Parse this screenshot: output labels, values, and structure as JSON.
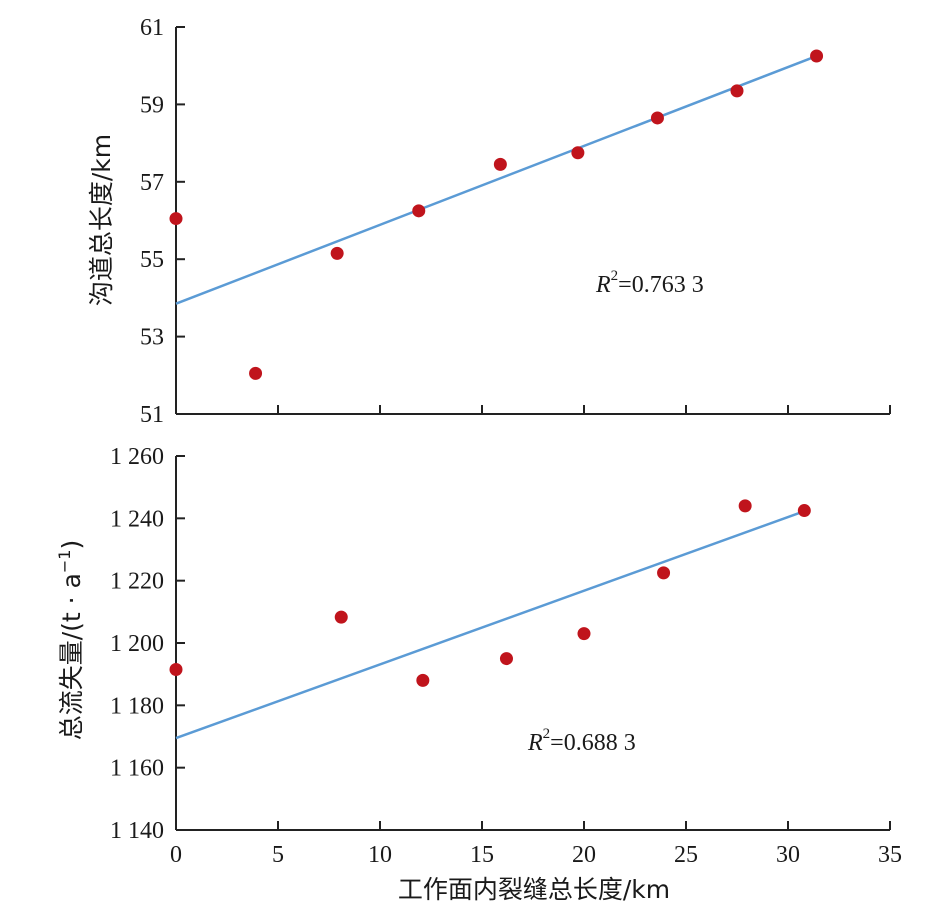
{
  "chart_data": [
    {
      "type": "scatter",
      "panel": "top",
      "ylabel": "沟道总长度/km",
      "xlim": [
        0,
        35
      ],
      "ylim": [
        51,
        61
      ],
      "yticks": [
        "51",
        "53",
        "55",
        "57",
        "59",
        "61"
      ],
      "points": [
        {
          "x": 0,
          "y": 56.05
        },
        {
          "x": 3.9,
          "y": 52.05
        },
        {
          "x": 7.9,
          "y": 55.15
        },
        {
          "x": 11.9,
          "y": 56.25
        },
        {
          "x": 15.9,
          "y": 57.45
        },
        {
          "x": 19.7,
          "y": 57.75
        },
        {
          "x": 23.6,
          "y": 58.65
        },
        {
          "x": 27.5,
          "y": 59.35
        },
        {
          "x": 31.4,
          "y": 60.25
        }
      ],
      "fit": {
        "x": [
          0,
          31.4
        ],
        "y": [
          53.85,
          60.25
        ]
      },
      "r2_label": {
        "prefix": "R",
        "sup": "2",
        "value": "=0.763 3"
      },
      "colors": {
        "points": "#c0141c",
        "fit": "#5b9bd5"
      }
    },
    {
      "type": "scatter",
      "panel": "bottom",
      "ylabel": "总流失量/(t · a",
      "ylabel_sup": "−1",
      "ylabel_tail": ")",
      "xlabel": "工作面内裂缝总长度/km",
      "xlim": [
        0,
        35
      ],
      "ylim": [
        1140,
        1260
      ],
      "xticks": [
        "0",
        "5",
        "10",
        "15",
        "20",
        "25",
        "30",
        "35"
      ],
      "yticks": [
        "1 140",
        "1 160",
        "1 180",
        "1 200",
        "1 220",
        "1 240",
        "1 260"
      ],
      "points": [
        {
          "x": 0,
          "y": 1191.5
        },
        {
          "x": 8.1,
          "y": 1208.3
        },
        {
          "x": 12.1,
          "y": 1188
        },
        {
          "x": 16.2,
          "y": 1195
        },
        {
          "x": 20.0,
          "y": 1203
        },
        {
          "x": 23.9,
          "y": 1222.5
        },
        {
          "x": 27.9,
          "y": 1244
        },
        {
          "x": 30.8,
          "y": 1242.5
        }
      ],
      "fit": {
        "x": [
          0,
          30.8
        ],
        "y": [
          1169.5,
          1242.3
        ]
      },
      "r2_label": {
        "prefix": "R",
        "sup": "2",
        "value": "=0.688 3"
      },
      "colors": {
        "points": "#c0141c",
        "fit": "#5b9bd5"
      }
    }
  ]
}
